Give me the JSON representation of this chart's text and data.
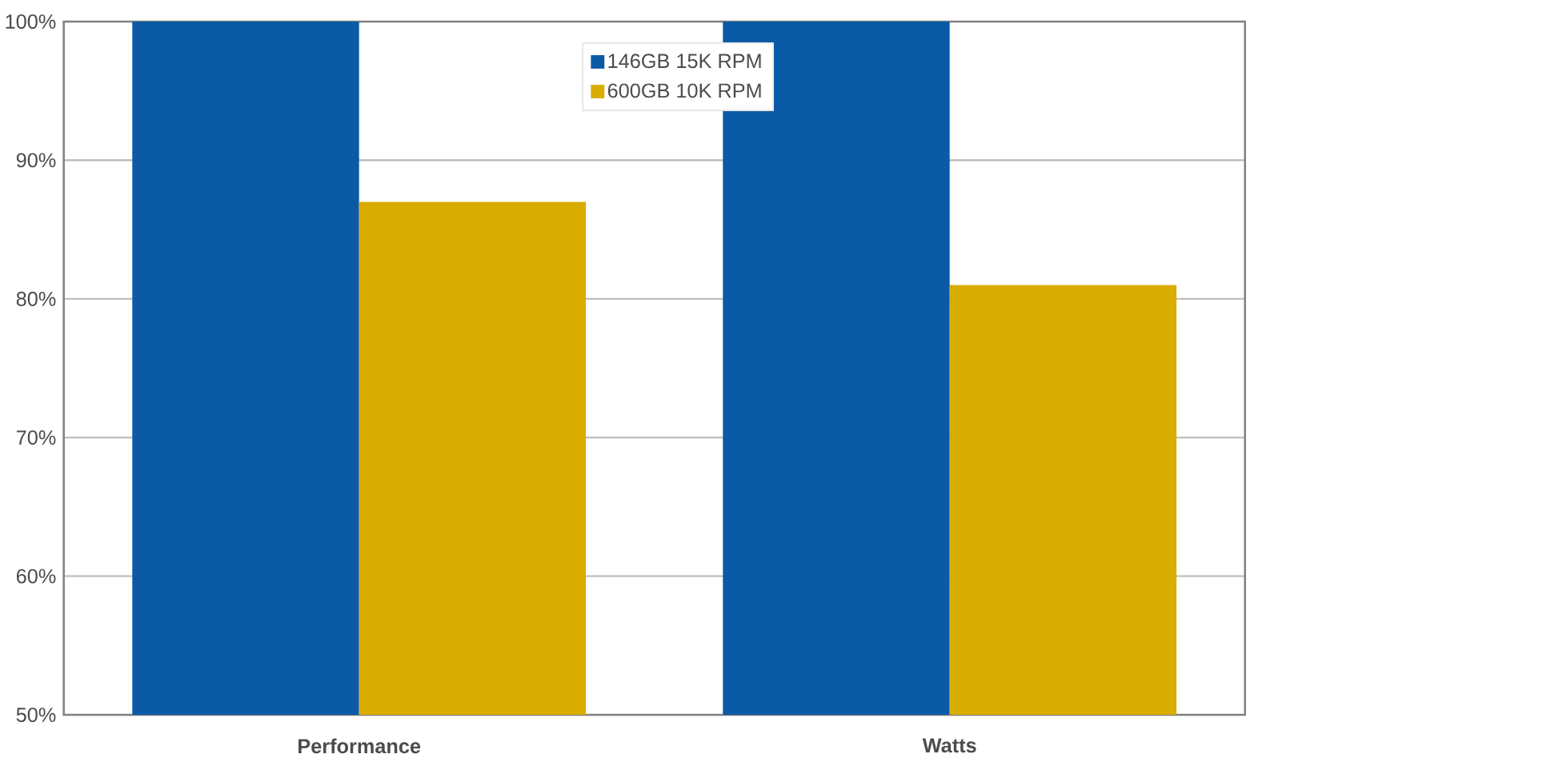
{
  "chart_data": {
    "type": "bar",
    "categories": [
      "Performance",
      "Watts"
    ],
    "series": [
      {
        "name": "146GB 15K RPM",
        "color": "#0a5aa6",
        "values": [
          100,
          100
        ]
      },
      {
        "name": "600GB 10K RPM",
        "color": "#d9ac00",
        "values": [
          87,
          81
        ]
      }
    ],
    "ylim": [
      50,
      100
    ],
    "yticks": [
      {
        "value": 50,
        "label": "50%"
      },
      {
        "value": 60,
        "label": "60%"
      },
      {
        "value": 70,
        "label": "70%"
      },
      {
        "value": 80,
        "label": "80%"
      },
      {
        "value": 90,
        "label": "90%"
      },
      {
        "value": 100,
        "label": "100%"
      }
    ],
    "grid": "y",
    "legend": "top"
  }
}
